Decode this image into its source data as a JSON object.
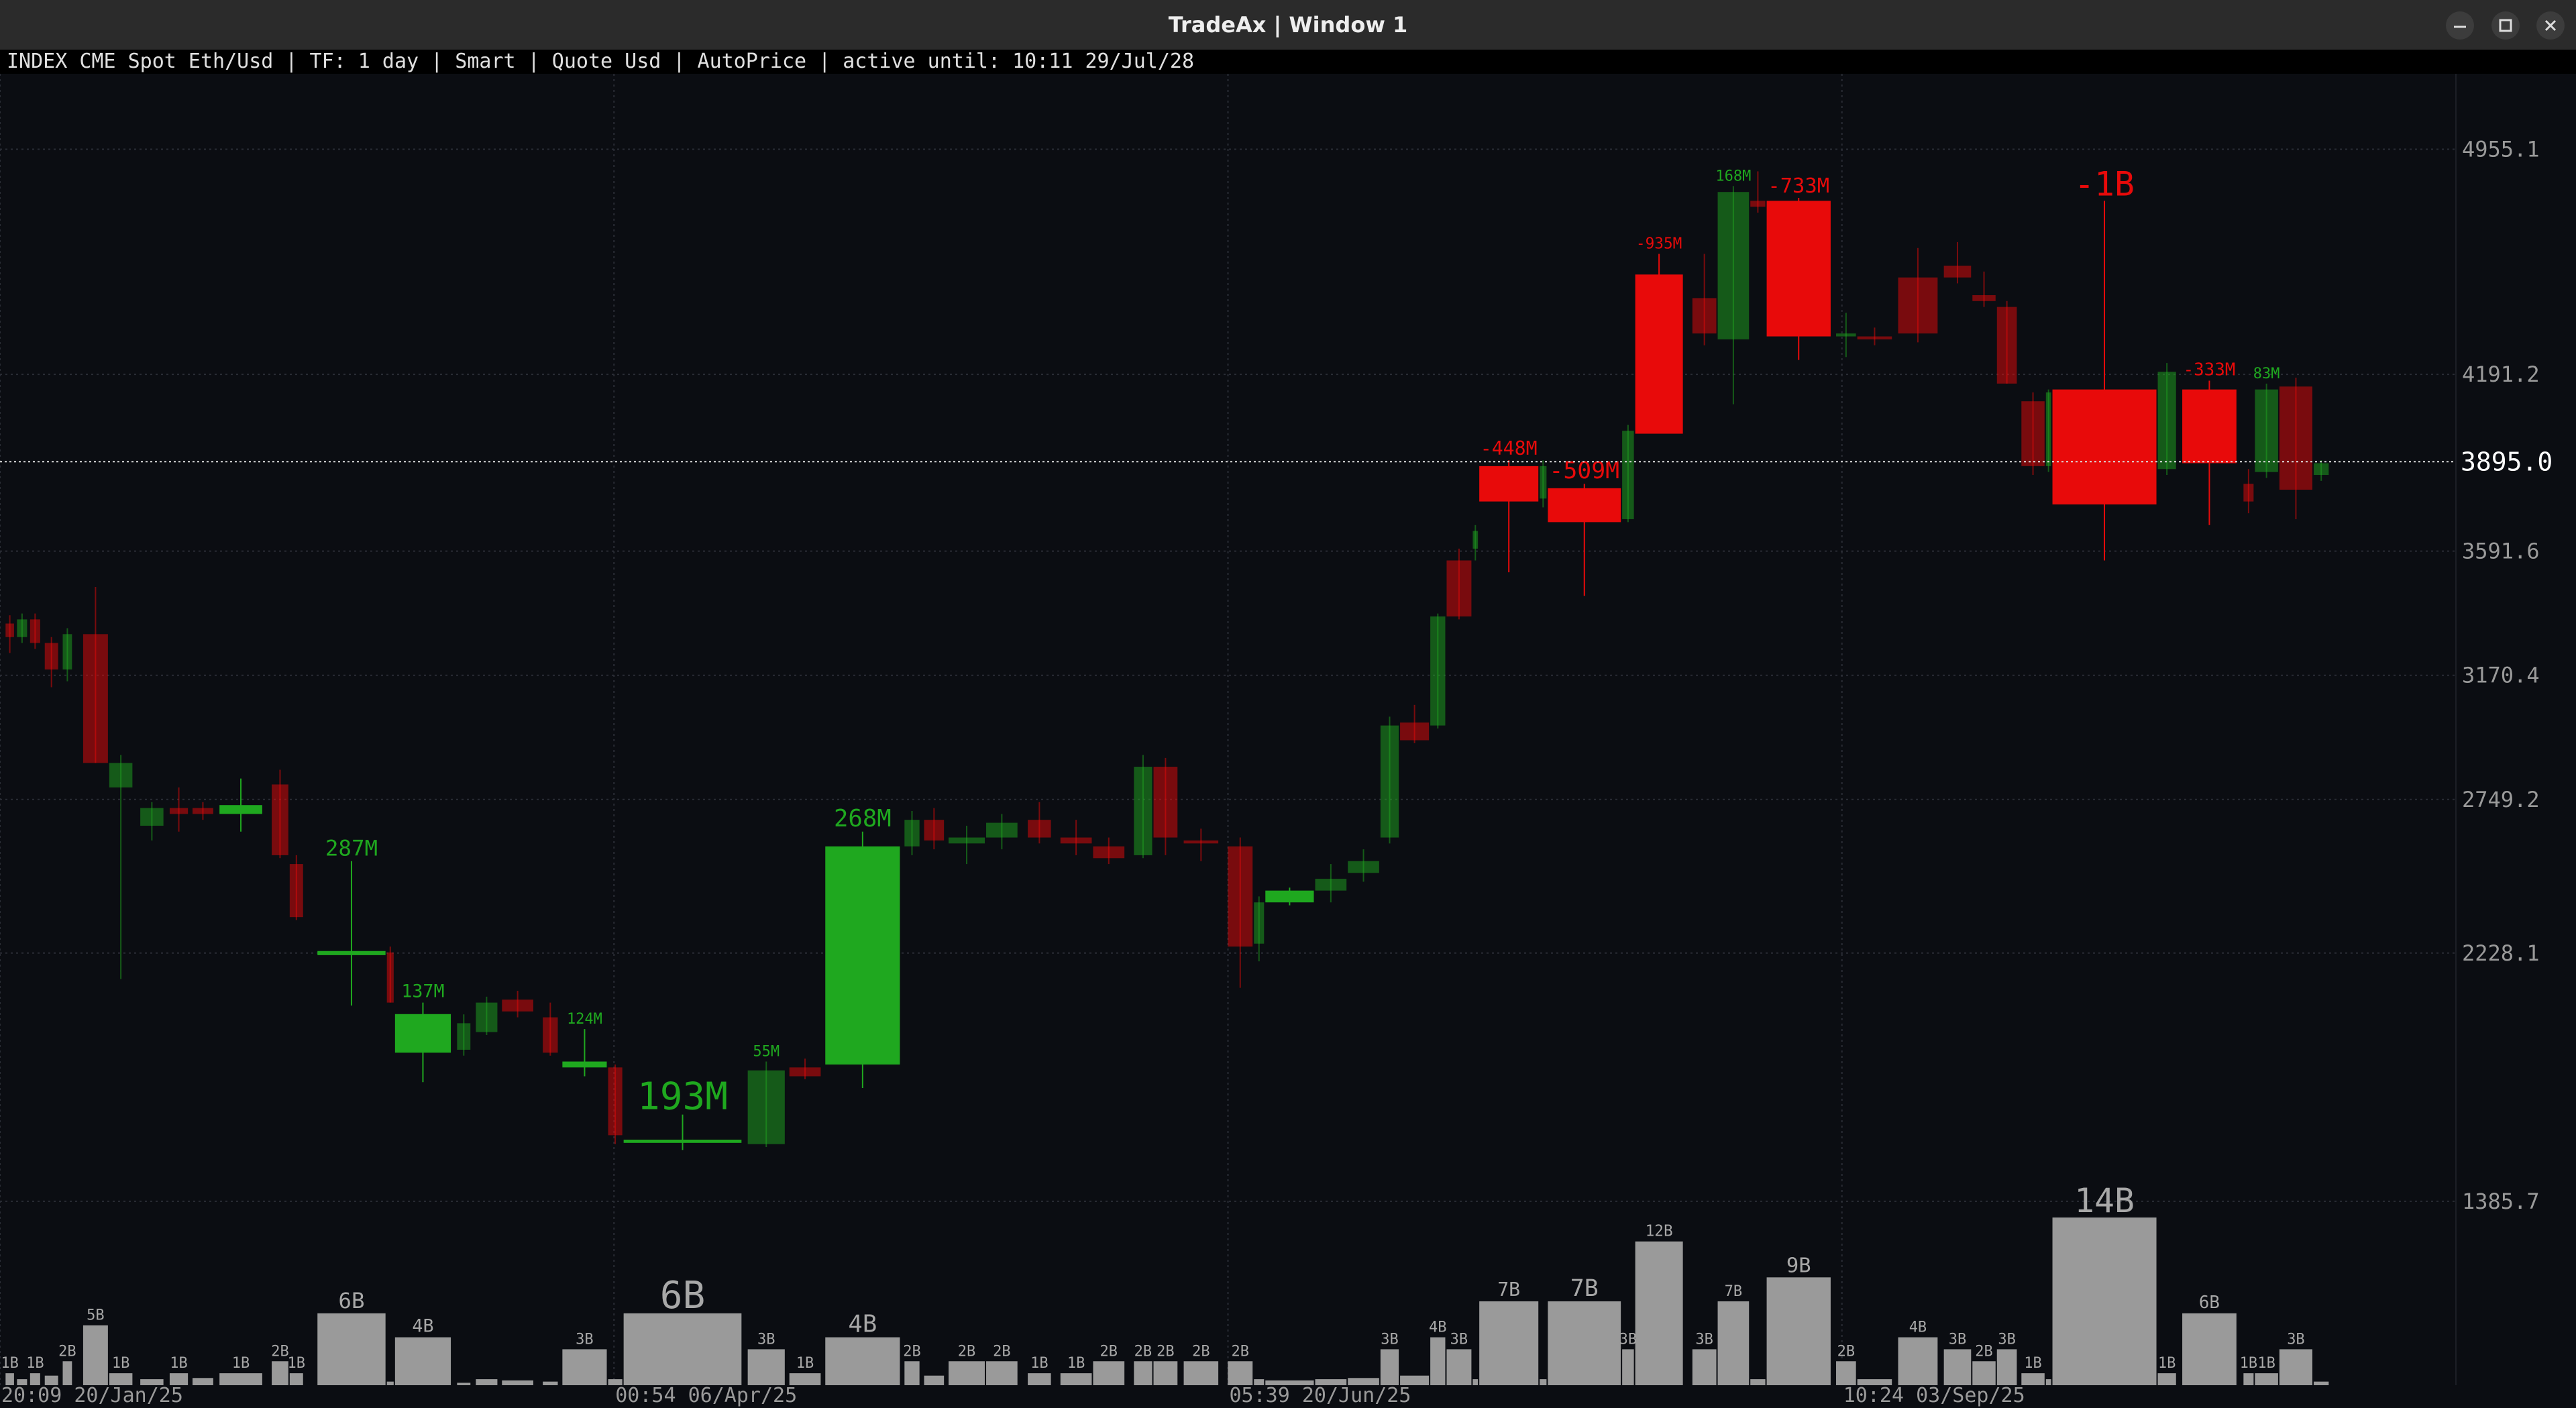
{
  "window": {
    "title": "TradeAx | Window 1"
  },
  "chart_data": {
    "type": "candlestick",
    "subtitle": "INDEX CME Spot Eth/Usd | TF: 1 day | Smart | Quote Usd | AutoPrice | active until: 10:11 29/Jul/28",
    "up_color": "#1fa81f",
    "down_color": "#e80a0a",
    "volume_color": "#9a9a9a",
    "grid": true,
    "xlim": [
      0,
      300.8
    ],
    "xticks": [
      {
        "value": 0,
        "label": "20:09 20/Jan/25"
      },
      {
        "value": 75.2,
        "label": "00:54 06/Apr/25"
      },
      {
        "value": 150.4,
        "label": "05:39 20/Jun/25"
      },
      {
        "value": 225.6,
        "label": "10:24 03/Sep/25"
      }
    ],
    "ylim": [
      762,
      5211
    ],
    "yticks": [
      4955.1,
      4191.2,
      3591.6,
      3170.4,
      2749.2,
      2228.1,
      1385.7
    ],
    "last_price": {
      "value": 3895,
      "label": "3895.0"
    },
    "x0": [
      0.6,
      2.0,
      3.6,
      5.4,
      7.6,
      10.1,
      13.3,
      17.1,
      20.7,
      23.5,
      26.8,
      33.2,
      35.4,
      38.8,
      47.3,
      48.3,
      55.9,
      58.2,
      61.4,
      66.4,
      68.8,
      74.4,
      76.3,
      91.5,
      96.6,
      101.0,
      110.7,
      113.1,
      116.1,
      120.7,
      125.8,
      129.8,
      133.8,
      138.8,
      141.2,
      144.9,
      150.3,
      153.5,
      154.9,
      161.0,
      165.0,
      169.0,
      171.4,
      175.1,
      177.1,
      180.3,
      181.1,
      188.5,
      189.5,
      198.6,
      200.2,
      207.2,
      210.3,
      214.3,
      216.3,
      224.8,
      227.4,
      232.4,
      238.0,
      241.5,
      244.5,
      247.5,
      250.5,
      251.3,
      264.2,
      267.2,
      274.7,
      276.1,
      279.1,
      283.3
    ],
    "x1": [
      1.8,
      3.4,
      5.0,
      7.2,
      8.9,
      13.3,
      16.3,
      20.1,
      23.1,
      26.2,
      32.2,
      35.4,
      37.2,
      47.3,
      48.3,
      55.3,
      57.7,
      61.0,
      65.4,
      68.4,
      74.4,
      76.3,
      90.9,
      96.2,
      100.6,
      110.3,
      112.7,
      115.7,
      120.7,
      124.7,
      128.8,
      133.8,
      137.8,
      141.2,
      144.3,
      149.3,
      153.5,
      154.9,
      161.0,
      165.0,
      169.0,
      171.4,
      175.1,
      177.1,
      180.3,
      181.1,
      188.5,
      189.5,
      198.6,
      200.2,
      206.2,
      210.3,
      214.3,
      216.3,
      224.3,
      227.4,
      231.8,
      237.4,
      241.5,
      244.5,
      247.1,
      250.5,
      251.3,
      264.2,
      266.6,
      274.0,
      276.1,
      279.1,
      283.3,
      285.3
    ],
    "open": [
      3346,
      3300,
      3360,
      3280,
      3190,
      3310,
      2790,
      2660,
      2720,
      2720,
      2700,
      2800,
      2530,
      2221,
      2230,
      1890,
      1900,
      1960,
      2070,
      2010,
      1840,
      1840,
      1584,
      1580,
      1840,
      1850,
      2590,
      2680,
      2600,
      2620,
      2680,
      2620,
      2590,
      2560,
      2860,
      2610,
      2590,
      2260,
      2400,
      2440,
      2500,
      2620,
      3010,
      3000,
      3560,
      3600,
      3880,
      3770,
      3805,
      3700,
      4530,
      4450,
      4310,
      4780,
      4780,
      4320,
      4320,
      4520,
      4560,
      4460,
      4420,
      4100,
      3880,
      4140,
      3870,
      4140,
      3820,
      3860,
      4150,
      3850
    ],
    "high": [
      3374,
      3380,
      3380,
      3300,
      3330,
      3470,
      2900,
      2740,
      2790,
      2740,
      2820,
      2850,
      2560,
      2540,
      2250,
      2060,
      2020,
      2080,
      2100,
      2060,
      1970,
      1850,
      1680,
      1860,
      1870,
      2640,
      2710,
      2720,
      2660,
      2700,
      2740,
      2680,
      2620,
      2900,
      2890,
      2650,
      2620,
      2420,
      2450,
      2530,
      2580,
      3030,
      3070,
      3380,
      3600,
      3680,
      3900,
      3900,
      3820,
      4020,
      4600,
      4600,
      4830,
      4880,
      4790,
      4400,
      4350,
      4620,
      4640,
      4540,
      4440,
      4130,
      4140,
      4780,
      4230,
      4170,
      3870,
      4160,
      4180,
      3900
    ],
    "low": [
      3246,
      3280,
      3260,
      3130,
      3150,
      2873,
      2140,
      2610,
      2640,
      2680,
      2640,
      2550,
      2340,
      2050,
      2060,
      1790,
      1880,
      1950,
      2010,
      1880,
      1810,
      1580,
      1560,
      1570,
      1800,
      1770,
      2560,
      2580,
      2530,
      2580,
      2600,
      2560,
      2530,
      2550,
      2560,
      2540,
      2110,
      2200,
      2390,
      2400,
      2470,
      2600,
      2940,
      2990,
      3360,
      3560,
      3520,
      3740,
      3440,
      3690,
      3990,
      4290,
      4090,
      4740,
      4240,
      4250,
      4290,
      4300,
      4500,
      4420,
      4160,
      3850,
      3860,
      3560,
      3850,
      3680,
      3720,
      3840,
      3700,
      3830
    ],
    "close": [
      3300,
      3360,
      3280,
      3190,
      3310,
      2873,
      2873,
      2720,
      2700,
      2700,
      2730,
      2560,
      2350,
      2235,
      2060,
      2021,
      1990,
      2060,
      2030,
      1890,
      1860,
      1610,
      1595,
      1830,
      1810,
      2590,
      2680,
      2610,
      2620,
      2670,
      2620,
      2600,
      2550,
      2860,
      2620,
      2600,
      2250,
      2400,
      2440,
      2480,
      2540,
      3000,
      2950,
      3370,
      3370,
      3660,
      3760,
      3880,
      3690,
      4000,
      3990,
      4330,
      4810,
      4760,
      4320,
      4330,
      4310,
      4330,
      4520,
      4440,
      4160,
      3880,
      4130,
      3750,
      4200,
      3890,
      3760,
      4140,
      3800,
      3890
    ],
    "volume": [
      1,
      0.5,
      1,
      0.8,
      2,
      5,
      1,
      0.5,
      1,
      0.6,
      1,
      2,
      1,
      6,
      0.3,
      4,
      0.2,
      0.5,
      0.4,
      0.3,
      3,
      0.5,
      6,
      3,
      1,
      4,
      2,
      0.8,
      2,
      2,
      1,
      1,
      2,
      2,
      2,
      2,
      2,
      0.5,
      0.4,
      0.5,
      0.6,
      3,
      0.8,
      4,
      3,
      0.5,
      7,
      0.5,
      7,
      3,
      12,
      3,
      7,
      0.5,
      9,
      2,
      0.5,
      4,
      3,
      2,
      3,
      1,
      0.5,
      14,
      1,
      6,
      1,
      1,
      3,
      0.3
    ],
    "volume_labels": [
      "1B",
      null,
      "1B",
      null,
      "2B",
      "5B",
      "1B",
      null,
      "1B",
      null,
      "1B",
      "2B",
      "1B",
      "6B",
      null,
      "4B",
      null,
      null,
      null,
      null,
      "3B",
      null,
      "6B",
      "3B",
      "1B",
      "4B",
      "2B",
      null,
      "2B",
      "2B",
      "1B",
      "1B",
      "2B",
      "2B",
      "2B",
      "2B",
      "2B",
      null,
      null,
      null,
      null,
      "3B",
      null,
      "4B",
      "3B",
      null,
      "7B",
      null,
      "7B",
      "3B",
      "12B",
      "3B",
      "7B",
      null,
      "9B",
      "2B",
      null,
      "4B",
      "3B",
      "2B",
      "3B",
      "1B",
      null,
      "14B",
      "1B",
      "6B",
      "1B",
      "1B",
      "3B",
      null
    ],
    "delta_labels": [
      null,
      null,
      null,
      null,
      null,
      null,
      null,
      null,
      null,
      null,
      null,
      null,
      null,
      "287M",
      null,
      "137M",
      null,
      null,
      null,
      null,
      "124M",
      null,
      "193M",
      "55M",
      null,
      "268M",
      null,
      null,
      null,
      null,
      null,
      null,
      null,
      null,
      null,
      null,
      null,
      null,
      null,
      null,
      null,
      null,
      null,
      null,
      null,
      null,
      "-448M",
      null,
      "-509M",
      null,
      "-935M",
      null,
      "168M",
      null,
      "-733M",
      null,
      null,
      null,
      null,
      null,
      null,
      null,
      null,
      "-1B",
      null,
      "-333M",
      null,
      "83M",
      null,
      null
    ]
  }
}
